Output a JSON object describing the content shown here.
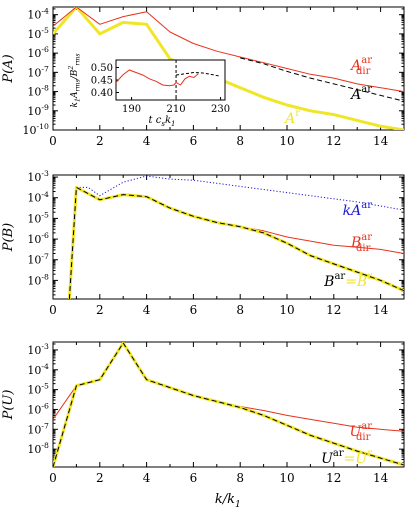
{
  "colors": {
    "axes": "#000000",
    "red": "#e8321e",
    "yellow": "#f0e628",
    "blue": "#1a18d4",
    "black": "#000000"
  },
  "chart_data": [
    {
      "type": "line",
      "ylabel": "P(A)",
      "xlim": [
        0,
        15
      ],
      "ylim_log10": [
        -10,
        -3.6
      ],
      "yticks": [
        "10^{-10}",
        "10^{-9}",
        "10^{-8}",
        "10^{-7}",
        "10^{-6}",
        "10^{-5}",
        "10^{-4}"
      ],
      "xticks": [
        "0",
        "2",
        "4",
        "6",
        "8",
        "10",
        "12",
        "14"
      ],
      "series": [
        {
          "name": "A^r",
          "color": "yellow",
          "dash": false,
          "width": 3,
          "x": [
            0,
            1,
            2,
            3,
            4,
            5,
            6,
            7,
            8,
            9,
            10,
            11,
            12,
            13,
            14,
            15
          ],
          "log10y": [
            -5.0,
            -3.6,
            -5.0,
            -4.4,
            -4.5,
            -6.3,
            -6.8,
            -7.3,
            -7.8,
            -8.3,
            -8.7,
            -9.0,
            -9.2,
            -9.5,
            -9.8,
            -10.0
          ]
        },
        {
          "name": "A^ar_dir",
          "color": "red",
          "dash": false,
          "width": 1,
          "x": [
            0,
            1,
            2,
            3,
            4,
            5,
            6,
            7,
            8,
            9,
            10,
            11,
            12,
            13,
            14,
            15
          ],
          "log10y": [
            -4.6,
            -3.6,
            -4.5,
            -4.1,
            -3.85,
            -4.9,
            -5.5,
            -5.9,
            -6.2,
            -6.5,
            -6.8,
            -7.1,
            -7.3,
            -7.6,
            -7.8,
            -8.0
          ]
        },
        {
          "name": "A^ar",
          "color": "black",
          "dash": true,
          "width": 1,
          "x": [
            8,
            9,
            10,
            11,
            12,
            13,
            14,
            15
          ],
          "log10y": [
            -6.25,
            -6.55,
            -6.95,
            -7.3,
            -7.6,
            -7.9,
            -8.2,
            -8.5
          ]
        }
      ],
      "labels": [
        {
          "main": "A",
          "sup": "ar",
          "sub": "dir",
          "color": "red"
        },
        {
          "main": "A",
          "sup": "ar",
          "sub": "",
          "color": "black"
        },
        {
          "main": "A",
          "sup": "r",
          "sub": "",
          "color": "yellow"
        }
      ],
      "inset": {
        "ylabel": "k_{1}A_{rms}/B^{2}_{rms}",
        "xlabel": "t  c_{s}k_{1}",
        "xlim": [
          183,
          232
        ],
        "ylim": [
          0.37,
          0.53
        ],
        "xticks": [
          "190",
          "210",
          "230"
        ],
        "yticks": [
          "0.40",
          "0.45",
          "0.50"
        ],
        "vline": 210,
        "series": [
          {
            "color": "red",
            "dash": false,
            "x": [
              183,
              186,
              189,
              192,
              195,
              198,
              201,
              204,
              207,
              209,
              210,
              212,
              214,
              216,
              218,
              220
            ],
            "y": [
              0.44,
              0.47,
              0.49,
              0.48,
              0.47,
              0.455,
              0.445,
              0.43,
              0.427,
              0.43,
              0.44,
              0.43,
              0.455,
              0.465,
              0.46,
              0.475
            ]
          },
          {
            "color": "black",
            "dash": true,
            "x": [
              210,
              214,
              218,
              222,
              226,
              230
            ],
            "y": [
              0.47,
              0.475,
              0.48,
              0.478,
              0.472,
              0.465
            ]
          }
        ]
      }
    },
    {
      "type": "line",
      "ylabel": "P(B)",
      "xlim": [
        0,
        15
      ],
      "ylim_log10": [
        -8.9,
        -2.9
      ],
      "yticks": [
        "10^{-8}",
        "10^{-7}",
        "10^{-6}",
        "10^{-5}",
        "10^{-4}",
        "10^{-3}"
      ],
      "xticks": [
        "0",
        "2",
        "4",
        "6",
        "8",
        "10",
        "12",
        "14"
      ],
      "series": [
        {
          "name": "kA^ar",
          "color": "blue",
          "dash": "dot",
          "width": 1,
          "x": [
            1,
            1.5,
            2,
            3,
            4,
            5,
            6,
            7,
            8,
            9,
            10,
            11,
            12,
            13,
            14,
            15
          ],
          "log10y": [
            -3.5,
            -3.5,
            -3.9,
            -3.25,
            -2.95,
            -3.1,
            -3.15,
            -3.3,
            -3.45,
            -3.6,
            -3.75,
            -3.9,
            -4.05,
            -4.2,
            -4.4,
            -4.6
          ]
        },
        {
          "name": "B^ar_dir",
          "color": "red",
          "dash": false,
          "width": 1,
          "x": [
            0.7,
            1,
            2,
            3,
            4,
            5,
            6,
            7,
            8,
            9,
            10,
            11,
            12,
            13,
            14,
            15
          ],
          "log10y": [
            -8.9,
            -3.5,
            -4.1,
            -3.85,
            -3.95,
            -4.5,
            -4.9,
            -5.2,
            -5.4,
            -5.6,
            -5.9,
            -6.1,
            -6.3,
            -6.4,
            -6.5,
            -6.7
          ]
        },
        {
          "name": "B^r",
          "color": "yellow",
          "dash": false,
          "width": 3,
          "x": [
            0.7,
            1,
            2,
            3,
            4,
            5,
            6,
            7,
            8,
            9,
            10,
            11,
            12,
            13,
            14,
            15
          ],
          "log10y": [
            -8.9,
            -3.5,
            -4.1,
            -3.85,
            -3.95,
            -4.5,
            -4.9,
            -5.2,
            -5.4,
            -5.7,
            -6.2,
            -6.8,
            -7.2,
            -7.6,
            -8.0,
            -8.5
          ]
        },
        {
          "name": "B^ar",
          "color": "black",
          "dash": true,
          "width": 1,
          "x": [
            0.7,
            1,
            2,
            3,
            4,
            5,
            6,
            7,
            8,
            9,
            10,
            11,
            12,
            13,
            14,
            15
          ],
          "log10y": [
            -8.9,
            -3.5,
            -4.1,
            -3.85,
            -3.95,
            -4.5,
            -4.9,
            -5.2,
            -5.4,
            -5.7,
            -6.2,
            -6.8,
            -7.2,
            -7.6,
            -8.0,
            -8.5
          ]
        }
      ],
      "labels": [
        {
          "main": "kA",
          "sup": "ar",
          "sub": "",
          "color": "blue"
        },
        {
          "main": "B",
          "sup": "ar",
          "sub": "dir",
          "color": "red"
        },
        {
          "main": "B",
          "sup": "ar",
          "sub": "",
          "color": "black",
          "eq": "=",
          "main2": "B",
          "sup2": "r",
          "color2": "yellow"
        }
      ]
    },
    {
      "type": "line",
      "ylabel": "P(U)",
      "xlabel": "k/k_{1}",
      "xlim": [
        0,
        15
      ],
      "ylim_log10": [
        -8.9,
        -2.6
      ],
      "yticks": [
        "10^{-8}",
        "10^{-7}",
        "10^{-6}",
        "10^{-5}",
        "10^{-4}",
        "10^{-3}"
      ],
      "xticks": [
        "0",
        "2",
        "4",
        "6",
        "8",
        "10",
        "12",
        "14"
      ],
      "series": [
        {
          "name": "U^ar_dir",
          "color": "red",
          "dash": false,
          "width": 1,
          "x": [
            0,
            1,
            2,
            3,
            4,
            5,
            6,
            7,
            8,
            9,
            10,
            11,
            12,
            13,
            14,
            15
          ],
          "log10y": [
            -6.5,
            -4.8,
            -4.5,
            -2.65,
            -4.5,
            -4.9,
            -5.3,
            -5.6,
            -5.85,
            -6.05,
            -6.3,
            -6.5,
            -6.7,
            -6.9,
            -7.0,
            -7.1
          ]
        },
        {
          "name": "U^r",
          "color": "yellow",
          "dash": false,
          "width": 3,
          "x": [
            0,
            1,
            2,
            3,
            4,
            5,
            6,
            7,
            8,
            9,
            10,
            11,
            12,
            13,
            14,
            15
          ],
          "log10y": [
            -8.9,
            -4.8,
            -4.5,
            -2.65,
            -4.5,
            -4.9,
            -5.3,
            -5.6,
            -5.9,
            -6.3,
            -6.8,
            -7.3,
            -7.7,
            -8.1,
            -8.45,
            -8.8
          ]
        },
        {
          "name": "U^ar",
          "color": "black",
          "dash": true,
          "width": 1,
          "x": [
            0,
            1,
            2,
            3,
            4,
            5,
            6,
            7,
            8,
            9,
            10,
            11,
            12,
            13,
            14,
            15
          ],
          "log10y": [
            -8.9,
            -4.8,
            -4.5,
            -2.65,
            -4.5,
            -4.9,
            -5.3,
            -5.6,
            -5.9,
            -6.3,
            -6.8,
            -7.3,
            -7.7,
            -8.1,
            -8.45,
            -8.8
          ]
        }
      ],
      "labels": [
        {
          "main": "U",
          "sup": "ar",
          "sub": "dir",
          "color": "red"
        },
        {
          "main": "U",
          "sup": "ar",
          "sub": "",
          "color": "black",
          "eq": "=",
          "main2": "U",
          "sup2": "r",
          "color2": "yellow"
        }
      ]
    }
  ]
}
